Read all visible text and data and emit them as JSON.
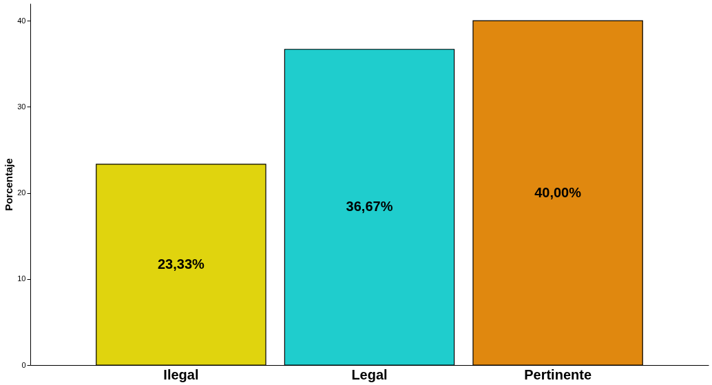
{
  "chart_data": {
    "type": "bar",
    "ylabel": "Porcentaje",
    "categories": [
      "Ilegal",
      "Legal",
      "Pertinente"
    ],
    "values": [
      23.33,
      36.67,
      40.0
    ],
    "colors": [
      "#e0d40e",
      "#1fcdcd",
      "#e0880f"
    ],
    "value_labels": [
      "23,33%",
      "36,67%",
      "40,00%"
    ],
    "ylim": [
      0,
      42
    ],
    "yticks": [
      0,
      10,
      20,
      30,
      40
    ],
    "grid": false
  }
}
